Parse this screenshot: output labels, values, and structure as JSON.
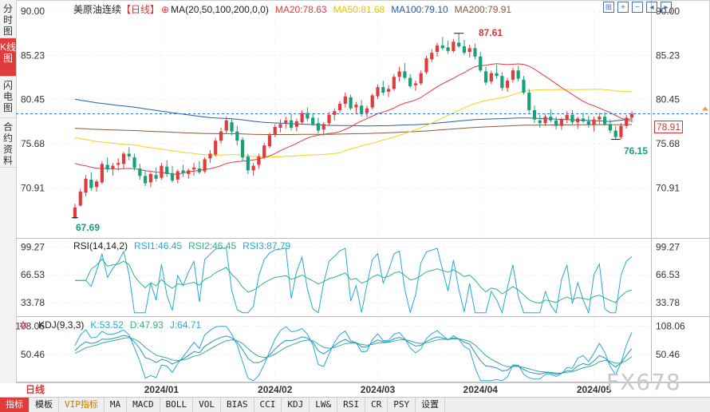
{
  "left_tabs": [
    {
      "label": "分时图",
      "active": false
    },
    {
      "label": "K线图",
      "active": true
    },
    {
      "label": "闪电图",
      "active": false
    },
    {
      "label": "合约资料",
      "active": false
    }
  ],
  "header": {
    "instrument": "美原油连续",
    "period": "【日线】",
    "ma_params": "MA(20,50,100,200,0,0)",
    "ma20": "MA20:78.63",
    "ma50": "MA50:81.68",
    "ma100": "MA100:79.10",
    "ma200": "MA200:79.91"
  },
  "rsi_header": {
    "params": "RSI(14,14,2)",
    "rsi1": "RSI1:46.45",
    "rsi2": "RSI2:46.45",
    "rsi3": "RSI3:87.79"
  },
  "kdj_header": {
    "params": "KDJ(9,3,3)",
    "k": "K:53.52",
    "d": "D:47.93",
    "j": "J:64.71"
  },
  "annotations": {
    "high_label": "87.61",
    "low_label": "67.69",
    "recent_low_label": "76.15",
    "last_price": "78.91"
  },
  "period_selector": "日线",
  "bottom_tabs": [
    "指标",
    "模板",
    "VIP指标",
    "MA",
    "MACD",
    "BOLL",
    "VOL",
    "BIAS",
    "CCI",
    "KDJ",
    "LW&",
    "RSI",
    "CR",
    "PSY",
    "设置"
  ],
  "watermark": "FX678",
  "colors": {
    "up": "#e03c3c",
    "down": "#18a07a",
    "ma20": "#e03c3c",
    "ma50": "#f2d21c",
    "ma100": "#2b5aa8",
    "ma200": "#8b5a3c",
    "rsi1": "#27a9d6",
    "rsi2": "#2fb38a",
    "rsi3": "#27a9d6"
  },
  "chart_data": [
    {
      "type": "candlestick",
      "title": "美原油连续 日线",
      "y_ticks": [
        "90.00",
        "85.23",
        "80.45",
        "75.68",
        "70.91"
      ],
      "ylim": [
        65.5,
        90.0
      ],
      "x_tick_labels": [
        "2024/01",
        "2024/02",
        "2024/03",
        "2024/04",
        "2024/05"
      ],
      "x_tick_index": [
        16,
        37,
        56,
        75,
        96
      ],
      "ohlc": [
        [
          67.6,
          69.2,
          67.69,
          68.8
        ],
        [
          69.0,
          70.8,
          68.9,
          70.5
        ],
        [
          70.4,
          72.3,
          70.0,
          71.9
        ],
        [
          71.8,
          72.6,
          70.6,
          70.9
        ],
        [
          71.0,
          71.8,
          70.5,
          71.6
        ],
        [
          71.5,
          73.8,
          71.3,
          73.5
        ],
        [
          73.4,
          74.2,
          72.6,
          72.9
        ],
        [
          73.0,
          73.6,
          72.2,
          73.3
        ],
        [
          73.4,
          74.1,
          72.8,
          73.6
        ],
        [
          73.5,
          74.8,
          73.0,
          74.6
        ],
        [
          74.6,
          75.3,
          73.9,
          74.3
        ],
        [
          74.2,
          74.6,
          72.8,
          73.1
        ],
        [
          73.0,
          73.5,
          71.8,
          72.2
        ],
        [
          72.2,
          72.8,
          71.1,
          71.4
        ],
        [
          71.5,
          72.6,
          71.0,
          72.4
        ],
        [
          72.3,
          73.1,
          71.6,
          71.9
        ],
        [
          72.0,
          73.6,
          71.8,
          73.3
        ],
        [
          73.2,
          73.9,
          72.1,
          72.4
        ],
        [
          72.5,
          73.3,
          71.5,
          71.7
        ],
        [
          71.8,
          72.9,
          71.4,
          72.7
        ],
        [
          72.8,
          73.4,
          72.1,
          72.5
        ],
        [
          72.4,
          73.0,
          71.9,
          72.8
        ],
        [
          72.9,
          73.6,
          72.2,
          73.1
        ],
        [
          73.0,
          73.8,
          72.4,
          72.6
        ],
        [
          72.7,
          74.2,
          72.5,
          74.0
        ],
        [
          74.1,
          75.0,
          73.6,
          74.6
        ],
        [
          74.5,
          76.3,
          74.3,
          76.0
        ],
        [
          76.0,
          77.4,
          75.7,
          77.0
        ],
        [
          77.1,
          78.6,
          76.8,
          78.2
        ],
        [
          78.0,
          78.4,
          76.6,
          77.0
        ],
        [
          77.0,
          77.6,
          75.5,
          76.0
        ],
        [
          76.1,
          76.4,
          73.8,
          74.2
        ],
        [
          74.3,
          74.6,
          72.4,
          72.8
        ],
        [
          72.8,
          73.6,
          72.2,
          73.3
        ],
        [
          73.4,
          74.6,
          73.0,
          74.3
        ],
        [
          74.2,
          75.8,
          74.0,
          75.5
        ],
        [
          75.4,
          76.9,
          75.2,
          76.6
        ],
        [
          76.7,
          77.8,
          76.4,
          77.5
        ],
        [
          77.4,
          78.3,
          76.9,
          77.8
        ],
        [
          77.9,
          78.6,
          77.3,
          78.2
        ],
        [
          78.2,
          78.9,
          77.1,
          77.4
        ],
        [
          77.5,
          78.4,
          77.0,
          78.1
        ],
        [
          78.0,
          79.3,
          77.8,
          79.0
        ],
        [
          79.0,
          79.6,
          78.1,
          78.4
        ],
        [
          78.5,
          79.0,
          77.6,
          77.8
        ],
        [
          77.9,
          78.5,
          76.8,
          77.1
        ],
        [
          77.2,
          78.0,
          76.6,
          77.8
        ],
        [
          77.9,
          79.1,
          77.6,
          78.8
        ],
        [
          78.8,
          79.5,
          78.2,
          79.2
        ],
        [
          79.3,
          80.3,
          79.0,
          80.0
        ],
        [
          80.0,
          81.2,
          79.6,
          80.8
        ],
        [
          80.7,
          81.0,
          79.3,
          79.5
        ],
        [
          79.6,
          80.2,
          78.9,
          79.9
        ],
        [
          79.8,
          80.4,
          78.6,
          78.9
        ],
        [
          79.0,
          79.8,
          78.5,
          79.5
        ],
        [
          79.6,
          81.1,
          79.4,
          80.9
        ],
        [
          80.8,
          82.1,
          80.5,
          81.8
        ],
        [
          81.8,
          82.5,
          80.9,
          81.2
        ],
        [
          81.3,
          82.0,
          80.7,
          81.6
        ],
        [
          81.6,
          83.2,
          81.4,
          82.9
        ],
        [
          82.9,
          84.0,
          82.4,
          83.5
        ],
        [
          83.5,
          84.4,
          82.6,
          82.8
        ],
        [
          82.8,
          83.2,
          81.7,
          81.9
        ],
        [
          82.0,
          82.5,
          81.4,
          82.2
        ],
        [
          82.2,
          83.6,
          82.0,
          83.3
        ],
        [
          83.4,
          85.2,
          83.2,
          84.9
        ],
        [
          84.8,
          85.9,
          84.5,
          85.5
        ],
        [
          85.6,
          86.6,
          85.1,
          86.3
        ],
        [
          86.3,
          87.2,
          85.8,
          86.0
        ],
        [
          86.1,
          86.8,
          85.4,
          85.7
        ],
        [
          85.7,
          87.0,
          85.5,
          86.7
        ],
        [
          86.6,
          87.61,
          86.0,
          86.2
        ],
        [
          86.2,
          86.9,
          85.3,
          85.5
        ],
        [
          85.6,
          86.4,
          85.0,
          86.0
        ],
        [
          86.0,
          86.5,
          84.8,
          85.1
        ],
        [
          85.1,
          85.6,
          83.4,
          83.6
        ],
        [
          83.5,
          84.0,
          82.0,
          82.3
        ],
        [
          82.4,
          83.6,
          82.1,
          83.3
        ],
        [
          83.3,
          84.2,
          82.7,
          83.0
        ],
        [
          83.0,
          83.4,
          81.4,
          81.7
        ],
        [
          81.7,
          82.8,
          81.3,
          82.5
        ],
        [
          82.6,
          83.9,
          82.3,
          83.6
        ],
        [
          83.6,
          84.1,
          82.4,
          82.7
        ],
        [
          82.6,
          83.0,
          81.0,
          81.2
        ],
        [
          81.2,
          81.6,
          79.0,
          79.3
        ],
        [
          79.3,
          79.8,
          77.9,
          78.3
        ],
        [
          78.2,
          78.8,
          77.4,
          77.9
        ],
        [
          77.9,
          78.9,
          77.6,
          78.6
        ],
        [
          78.6,
          79.4,
          78.0,
          78.2
        ],
        [
          78.2,
          78.6,
          77.2,
          77.6
        ],
        [
          77.6,
          78.5,
          77.2,
          78.3
        ],
        [
          78.3,
          79.2,
          77.9,
          78.8
        ],
        [
          78.8,
          79.3,
          77.8,
          78.0
        ],
        [
          78.0,
          78.6,
          77.3,
          78.4
        ],
        [
          78.4,
          79.0,
          77.9,
          78.1
        ],
        [
          78.1,
          78.7,
          77.4,
          77.7
        ],
        [
          77.7,
          78.6,
          77.0,
          78.3
        ],
        [
          78.3,
          79.0,
          77.8,
          78.6
        ],
        [
          78.6,
          79.1,
          77.6,
          77.8
        ],
        [
          77.8,
          78.3,
          76.8,
          77.1
        ],
        [
          77.1,
          77.6,
          76.15,
          76.4
        ],
        [
          76.4,
          77.9,
          76.2,
          77.6
        ],
        [
          77.6,
          78.8,
          77.3,
          78.5
        ],
        [
          78.5,
          79.2,
          78.0,
          78.91
        ]
      ]
    },
    {
      "type": "line",
      "title": "RSI(14,14,2)",
      "y_ticks": [
        "99.27",
        "66.53",
        "33.78"
      ],
      "ylim": [
        18,
        108
      ],
      "series_names": [
        "RSI1",
        "RSI2",
        "RSI3"
      ]
    },
    {
      "type": "line",
      "title": "KDJ(9,3,3)",
      "y_ticks": [
        "108.06",
        "50.46"
      ],
      "ylim": [
        -5,
        125
      ],
      "series_names": [
        "K",
        "D",
        "J"
      ]
    }
  ]
}
